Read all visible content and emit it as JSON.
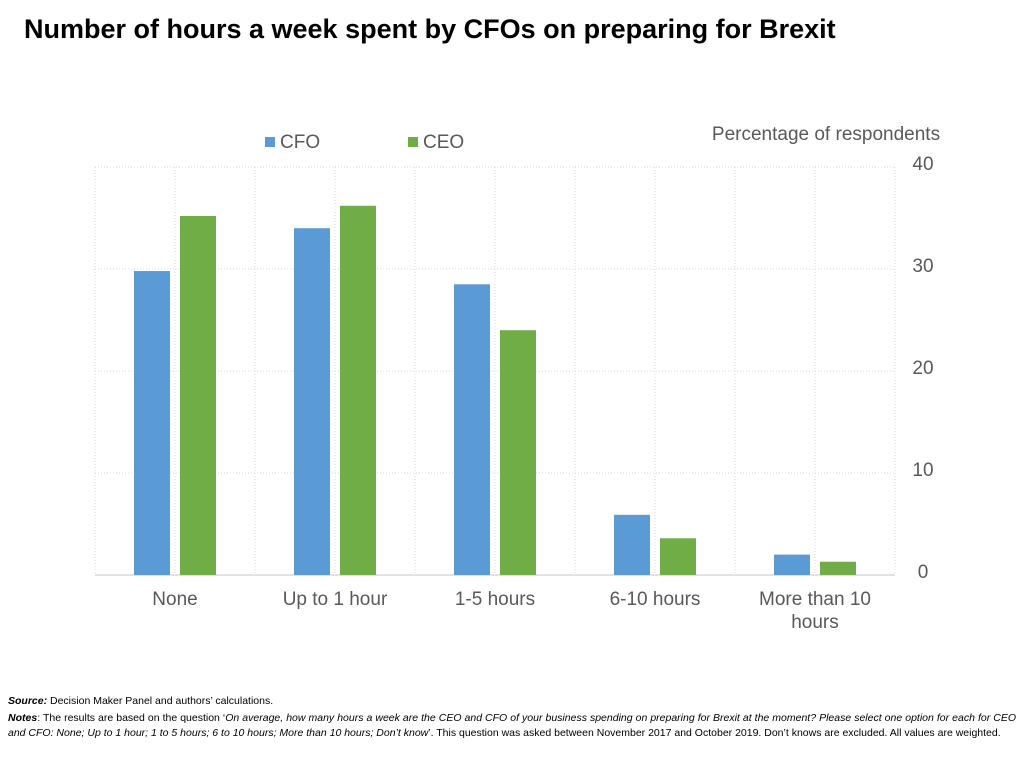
{
  "chart_data": {
    "type": "bar",
    "title": "Number of hours a week spent by CFOs on preparing for Brexit",
    "y_axis_label": "Percentage of respondents",
    "categories": [
      "None",
      "Up to 1 hour",
      "1-5 hours",
      "6-10 hours",
      "More than 10 hours"
    ],
    "series": [
      {
        "name": "CFO",
        "color": "#5b9bd5",
        "values": [
          29.8,
          34.0,
          28.5,
          5.9,
          2.0
        ]
      },
      {
        "name": "CEO",
        "color": "#70ad47",
        "values": [
          35.2,
          36.2,
          24.0,
          3.6,
          1.3
        ]
      }
    ],
    "ylim": [
      0,
      40
    ],
    "yticks": [
      0,
      10,
      20,
      30,
      40
    ],
    "grid": true,
    "y_axis_side": "right"
  },
  "footer": {
    "source": {
      "label": "Source:",
      "text": " Decision Maker Panel and authors’ calculations."
    },
    "notes": {
      "label": "Notes",
      "parts": [
        ": The results are based on the question ‘",
        "On average, how many hours a week are the CEO and CFO of your business spending on preparing for Brexit at the moment?  Please select one option for each for CEO and CFO: None; Up to 1 hour; 1 to 5 hours; 6 to 10 hours; More than 10 hours; Don’t know",
        "’. This question was asked between November 2017 and October 2019. Don’t knows are excluded.  All values are weighted."
      ]
    }
  }
}
